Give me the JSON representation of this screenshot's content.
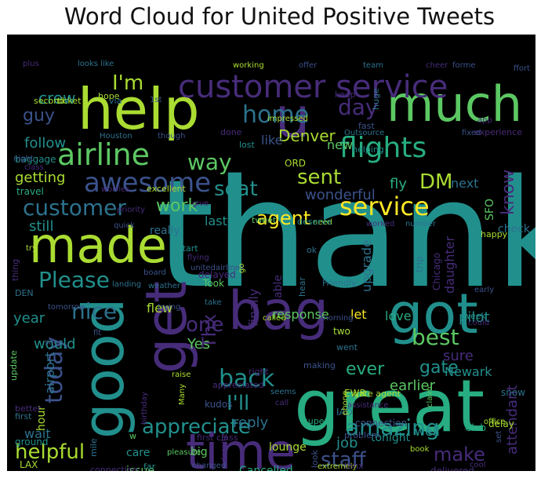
{
  "title": "Word Cloud for United Positive Tweets",
  "palette": [
    "#440154",
    "#472c7a",
    "#3b528b",
    "#2c728e",
    "#21908d",
    "#27ad81",
    "#5cc863",
    "#aadc32",
    "#fde725"
  ],
  "words": [
    {
      "text": "thank",
      "size": 190,
      "color": "#21908d"
    },
    {
      "text": "great",
      "size": 92,
      "color": "#27ad81"
    },
    {
      "text": "help",
      "size": 72,
      "color": "#aadc32"
    },
    {
      "text": "much",
      "size": 62,
      "color": "#5cc863"
    },
    {
      "text": "got",
      "size": 70,
      "color": "#21908d"
    },
    {
      "text": "bag",
      "size": 68,
      "color": "#472c7a"
    },
    {
      "text": "good",
      "size": 72,
      "color": "#21908d"
    },
    {
      "text": "get",
      "size": 72,
      "color": "#472c7a"
    },
    {
      "text": "time",
      "size": 62,
      "color": "#472c7a"
    },
    {
      "text": "made",
      "size": 62,
      "color": "#aadc32"
    },
    {
      "text": "u",
      "size": 70,
      "color": "#472c7a"
    },
    {
      "text": "customer service",
      "size": 40,
      "color": "#472c7a"
    },
    {
      "text": "airline",
      "size": 38,
      "color": "#5cc863"
    },
    {
      "text": "flights",
      "size": 36,
      "color": "#27ad81"
    },
    {
      "text": "awesome",
      "size": 34,
      "color": "#3b528b"
    },
    {
      "text": "service",
      "size": 32,
      "color": "#fde725"
    },
    {
      "text": "customer",
      "size": 28,
      "color": "#2c728e"
    },
    {
      "text": "home",
      "size": 30,
      "color": "#2c728e"
    },
    {
      "text": "day",
      "size": 28,
      "color": "#472c7a"
    },
    {
      "text": "way",
      "size": 28,
      "color": "#5cc863"
    },
    {
      "text": "seat",
      "size": 26,
      "color": "#21908d"
    },
    {
      "text": "sent",
      "size": 26,
      "color": "#aadc32"
    },
    {
      "text": "DM",
      "size": 26,
      "color": "#aadc32"
    },
    {
      "text": "agent",
      "size": 24,
      "color": "#fde725"
    },
    {
      "text": "work",
      "size": 22,
      "color": "#5cc863"
    },
    {
      "text": "Please",
      "size": 28,
      "color": "#21908d"
    },
    {
      "text": "nice",
      "size": 28,
      "color": "#2c728e"
    },
    {
      "text": "one",
      "size": 26,
      "color": "#472c7a"
    },
    {
      "text": "best",
      "size": 28,
      "color": "#5cc863"
    },
    {
      "text": "back",
      "size": 30,
      "color": "#21908d"
    },
    {
      "text": "today",
      "size": 30,
      "color": "#3b528b"
    },
    {
      "text": "appreciate",
      "size": 26,
      "color": "#21908d"
    },
    {
      "text": "amazing",
      "size": 28,
      "color": "#21908d"
    },
    {
      "text": "helpful",
      "size": 26,
      "color": "#aadc32"
    },
    {
      "text": "staff",
      "size": 26,
      "color": "#3b528b"
    },
    {
      "text": "make",
      "size": 24,
      "color": "#472c7a"
    },
    {
      "text": "I'm",
      "size": 26,
      "color": "#aadc32"
    },
    {
      "text": "crew",
      "size": 20,
      "color": "#21908d"
    },
    {
      "text": "guy",
      "size": 22,
      "color": "#3b528b"
    },
    {
      "text": "follow",
      "size": 18,
      "color": "#21908d"
    },
    {
      "text": "Denver",
      "size": 20,
      "color": "#aadc32"
    },
    {
      "text": "like",
      "size": 16,
      "color": "#3b528b"
    },
    {
      "text": "new",
      "size": 16,
      "color": "#5cc863"
    },
    {
      "text": "fly",
      "size": 18,
      "color": "#27ad81"
    },
    {
      "text": "next",
      "size": 16,
      "color": "#2c728e"
    },
    {
      "text": "know",
      "size": 22,
      "color": "#472c7a"
    },
    {
      "text": "wonderful",
      "size": 18,
      "color": "#3b528b"
    },
    {
      "text": "getting",
      "size": 18,
      "color": "#aadc32"
    },
    {
      "text": "still",
      "size": 18,
      "color": "#21908d"
    },
    {
      "text": "last",
      "size": 16,
      "color": "#21908d"
    },
    {
      "text": "really",
      "size": 14,
      "color": "#2c728e"
    },
    {
      "text": "check",
      "size": 14,
      "color": "#2c728e"
    },
    {
      "text": "year",
      "size": 18,
      "color": "#21908d"
    },
    {
      "text": "would",
      "size": 18,
      "color": "#21908d"
    },
    {
      "text": "Yes",
      "size": 18,
      "color": "#5cc863"
    },
    {
      "text": "Thx",
      "size": 24,
      "color": "#472c7a"
    },
    {
      "text": "I'll",
      "size": 26,
      "color": "#21908d"
    },
    {
      "text": "ever",
      "size": 22,
      "color": "#27ad81"
    },
    {
      "text": "gate",
      "size": 22,
      "color": "#21908d"
    },
    {
      "text": "sure",
      "size": 18,
      "color": "#472c7a"
    },
    {
      "text": "Newark",
      "size": 16,
      "color": "#21908d"
    },
    {
      "text": "earlier",
      "size": 18,
      "color": "#5cc863"
    },
    {
      "text": "love",
      "size": 16,
      "color": "#27ad81"
    },
    {
      "text": "pilot",
      "size": 18,
      "color": "#21908d"
    },
    {
      "text": "response",
      "size": 16,
      "color": "#5cc863"
    },
    {
      "text": "let",
      "size": 16,
      "color": "#fde725"
    },
    {
      "text": "flew",
      "size": 16,
      "color": "#aadc32"
    },
    {
      "text": "finally",
      "size": 16,
      "color": "#472c7a"
    },
    {
      "text": "upgrade",
      "size": 16,
      "color": "#2c728e"
    },
    {
      "text": "daughter",
      "size": 16,
      "color": "#472c7a"
    },
    {
      "text": "attendant",
      "size": 18,
      "color": "#472c7a"
    },
    {
      "text": "reply",
      "size": 18,
      "color": "#2c728e"
    },
    {
      "text": "job",
      "size": 18,
      "color": "#21908d"
    },
    {
      "text": "well",
      "size": 16,
      "color": "#21908d"
    },
    {
      "text": "tonight",
      "size": 14,
      "color": "#21908d"
    },
    {
      "text": "wait",
      "size": 16,
      "color": "#2c728e"
    },
    {
      "text": "care",
      "size": 14,
      "color": "#21908d"
    },
    {
      "text": "issue",
      "size": 14,
      "color": "#5cc863"
    },
    {
      "text": "Cancelled",
      "size": 14,
      "color": "#27ad81"
    },
    {
      "text": "delivered",
      "size": 12,
      "color": "#472c7a"
    },
    {
      "text": "lounge",
      "size": 14,
      "color": "#aadc32"
    },
    {
      "text": "connection",
      "size": 12,
      "color": "#3b528b"
    },
    {
      "text": "kudos",
      "size": 12,
      "color": "#3b528b"
    },
    {
      "text": "delay",
      "size": 12,
      "color": "#aadc32"
    },
    {
      "text": "snow",
      "size": 12,
      "color": "#2c728e"
    },
    {
      "text": "IAD",
      "size": 12,
      "color": "#2c728e"
    },
    {
      "text": "EWR",
      "size": 12,
      "color": "#aadc32"
    },
    {
      "text": "gate agent",
      "size": 11,
      "color": "#aadc32"
    },
    {
      "text": "airport",
      "size": 16,
      "color": "#2c728e"
    },
    {
      "text": "hour",
      "size": 14,
      "color": "#aadc32"
    },
    {
      "text": "ground",
      "size": 12,
      "color": "#21908d"
    },
    {
      "text": "baggage",
      "size": 12,
      "color": "#21908d"
    },
    {
      "text": "travel",
      "size": 12,
      "color": "#27ad81"
    },
    {
      "text": "SFO",
      "size": 14,
      "color": "#5cc863"
    },
    {
      "text": "ORD",
      "size": 12,
      "color": "#aadc32"
    },
    {
      "text": "Chicago",
      "size": 12,
      "color": "#472c7a"
    },
    {
      "text": "trip",
      "size": 12,
      "color": "#2c728e"
    },
    {
      "text": "delayed",
      "size": 12,
      "color": "#472c7a"
    },
    {
      "text": "Took",
      "size": 12,
      "color": "#5cc863"
    },
    {
      "text": "DEN",
      "size": 11,
      "color": "#2c728e"
    },
    {
      "text": "helping",
      "size": 11,
      "color": "#21908d"
    },
    {
      "text": "fast",
      "size": 11,
      "color": "#3b528b"
    },
    {
      "text": "lost",
      "size": 11,
      "color": "#21908d"
    },
    {
      "text": "done",
      "size": 11,
      "color": "#472c7a"
    },
    {
      "text": "experience",
      "size": 11,
      "color": "#472c7a"
    },
    {
      "text": "huge",
      "size": 11,
      "color": "#2c728e"
    },
    {
      "text": "keep",
      "size": 11,
      "color": "#472c7a"
    },
    {
      "text": "hope",
      "size": 11,
      "color": "#aadc32"
    },
    {
      "text": "via",
      "size": 11,
      "color": "#2c728e"
    },
    {
      "text": "second",
      "size": 11,
      "color": "#aadc32"
    },
    {
      "text": "ticket",
      "size": 11,
      "color": "#aadc32"
    },
    {
      "text": "1st",
      "size": 10,
      "color": "#3b528b"
    },
    {
      "text": "plus",
      "size": 10,
      "color": "#472c7a"
    },
    {
      "text": "looks like",
      "size": 10,
      "color": "#2c728e"
    },
    {
      "text": "working",
      "size": 10,
      "color": "#aadc32"
    },
    {
      "text": "offer",
      "size": 10,
      "color": "#3b528b"
    },
    {
      "text": "team",
      "size": 10,
      "color": "#2c728e"
    },
    {
      "text": "cheer",
      "size": 10,
      "color": "#472c7a"
    },
    {
      "text": "forme",
      "size": 10,
      "color": "#3b528b"
    },
    {
      "text": "ffort",
      "size": 10,
      "color": "#3b528b"
    },
    {
      "text": "app",
      "size": 10,
      "color": "#472c7a"
    },
    {
      "text": "fixed",
      "size": 10,
      "color": "#3b528b"
    },
    {
      "text": "Outsource",
      "size": 10,
      "color": "#2c728e"
    },
    {
      "text": "impressed",
      "size": 10,
      "color": "#aadc32"
    },
    {
      "text": "though",
      "size": 10,
      "color": "#3b528b"
    },
    {
      "text": "Houston",
      "size": 10,
      "color": "#2c728e"
    },
    {
      "text": "night",
      "size": 10,
      "color": "#3b528b"
    },
    {
      "text": "class",
      "size": 10,
      "color": "#472c7a"
    },
    {
      "text": "worries",
      "size": 10,
      "color": "#472c7a"
    },
    {
      "text": "excellent",
      "size": 11,
      "color": "#aadc32"
    },
    {
      "text": "give",
      "size": 10,
      "color": "#472c7a"
    },
    {
      "text": "priority",
      "size": 10,
      "color": "#472c7a"
    },
    {
      "text": "quick",
      "size": 10,
      "color": "#3b528b"
    },
    {
      "text": "tweet",
      "size": 11,
      "color": "#5cc863"
    },
    {
      "text": "need",
      "size": 10,
      "color": "#aadc32"
    },
    {
      "text": "worked",
      "size": 10,
      "color": "#472c7a"
    },
    {
      "text": "number",
      "size": 10,
      "color": "#2c728e"
    },
    {
      "text": "deserve",
      "size": 11,
      "color": "#21908d"
    },
    {
      "text": "start",
      "size": 11,
      "color": "#21908d"
    },
    {
      "text": "ok",
      "size": 11,
      "color": "#2c728e"
    },
    {
      "text": "happy",
      "size": 11,
      "color": "#aadc32"
    },
    {
      "text": "thing",
      "size": 11,
      "color": "#472c7a"
    },
    {
      "text": "try",
      "size": 10,
      "color": "#aadc32"
    },
    {
      "text": "flying",
      "size": 10,
      "color": "#472c7a"
    },
    {
      "text": "unitedairlines",
      "size": 10,
      "color": "#3b528b"
    },
    {
      "text": "board",
      "size": 10,
      "color": "#3b528b"
    },
    {
      "text": "weather",
      "size": 10,
      "color": "#2c728e"
    },
    {
      "text": "go",
      "size": 10,
      "color": "#aadc32"
    },
    {
      "text": "hear",
      "size": 11,
      "color": "#2c728e"
    },
    {
      "text": "able",
      "size": 14,
      "color": "#472c7a"
    },
    {
      "text": "Friendly",
      "size": 11,
      "color": "#2c728e"
    },
    {
      "text": "landing",
      "size": 10,
      "color": "#2c728e"
    },
    {
      "text": "take",
      "size": 10,
      "color": "#2c728e"
    },
    {
      "text": "trying",
      "size": 10,
      "color": "#3b528b"
    },
    {
      "text": "tomorrow",
      "size": 10,
      "color": "#3b528b"
    },
    {
      "text": "called",
      "size": 10,
      "color": "#aadc32"
    },
    {
      "text": "morning",
      "size": 10,
      "color": "#3b528b"
    },
    {
      "text": "two",
      "size": 12,
      "color": "#aadc32"
    },
    {
      "text": "went",
      "size": 11,
      "color": "#2c728e"
    },
    {
      "text": "week",
      "size": 11,
      "color": "#21908d"
    },
    {
      "text": "early",
      "size": 10,
      "color": "#3b528b"
    },
    {
      "text": "could",
      "size": 10,
      "color": "#472c7a"
    },
    {
      "text": "flt",
      "size": 10,
      "color": "#3b528b"
    },
    {
      "text": "right",
      "size": 11,
      "color": "#472c7a"
    },
    {
      "text": "soon",
      "size": 10,
      "color": "#3b528b"
    },
    {
      "text": "update",
      "size": 11,
      "color": "#5cc863"
    },
    {
      "text": "raise",
      "size": 10,
      "color": "#aadc32"
    },
    {
      "text": "appreciated",
      "size": 11,
      "color": "#472c7a"
    },
    {
      "text": "Many",
      "size": 10,
      "color": "#aadc32"
    },
    {
      "text": "seems",
      "size": 10,
      "color": "#2c728e"
    },
    {
      "text": "call",
      "size": 10,
      "color": "#472c7a"
    },
    {
      "text": "making",
      "size": 11,
      "color": "#3b528b"
    },
    {
      "text": "super",
      "size": 11,
      "color": "#27ad81"
    },
    {
      "text": "claim",
      "size": 10,
      "color": "#5cc863"
    },
    {
      "text": "assistance",
      "size": 10,
      "color": "#472c7a"
    },
    {
      "text": "phone",
      "size": 10,
      "color": "#aadc32"
    },
    {
      "text": "office",
      "size": 10,
      "color": "#aadc32"
    },
    {
      "text": "birthday",
      "size": 10,
      "color": "#472c7a"
    },
    {
      "text": "w",
      "size": 11,
      "color": "#5cc863"
    },
    {
      "text": "first class",
      "size": 11,
      "color": "#472c7a"
    },
    {
      "text": "big",
      "size": 14,
      "color": "#5cc863"
    },
    {
      "text": "mile",
      "size": 11,
      "color": "#2c728e"
    },
    {
      "text": "far",
      "size": 11,
      "color": "#21908d"
    },
    {
      "text": "despite",
      "size": 10,
      "color": "#472c7a"
    },
    {
      "text": "pleasure",
      "size": 10,
      "color": "#5cc863"
    },
    {
      "text": "problem",
      "size": 11,
      "color": "#3b528b"
    },
    {
      "text": "Club",
      "size": 12,
      "color": "#27ad81"
    },
    {
      "text": "look",
      "size": 11,
      "color": "#3b528b"
    },
    {
      "text": "extremely",
      "size": 10,
      "color": "#aadc32"
    },
    {
      "text": "thnx",
      "size": 11,
      "color": "#472c7a"
    },
    {
      "text": "cool",
      "size": 10,
      "color": "#472c7a"
    },
    {
      "text": "book",
      "size": 10,
      "color": "#aadc32"
    },
    {
      "text": "set",
      "size": 10,
      "color": "#3b528b"
    },
    {
      "text": "LAX",
      "size": 12,
      "color": "#aadc32"
    },
    {
      "text": "connecting",
      "size": 11,
      "color": "#472c7a"
    },
    {
      "text": "changed",
      "size": 10,
      "color": "#3b528b"
    },
    {
      "text": "better",
      "size": 11,
      "color": "#472c7a"
    },
    {
      "text": "first",
      "size": 11,
      "color": "#2c728e"
    }
  ]
}
